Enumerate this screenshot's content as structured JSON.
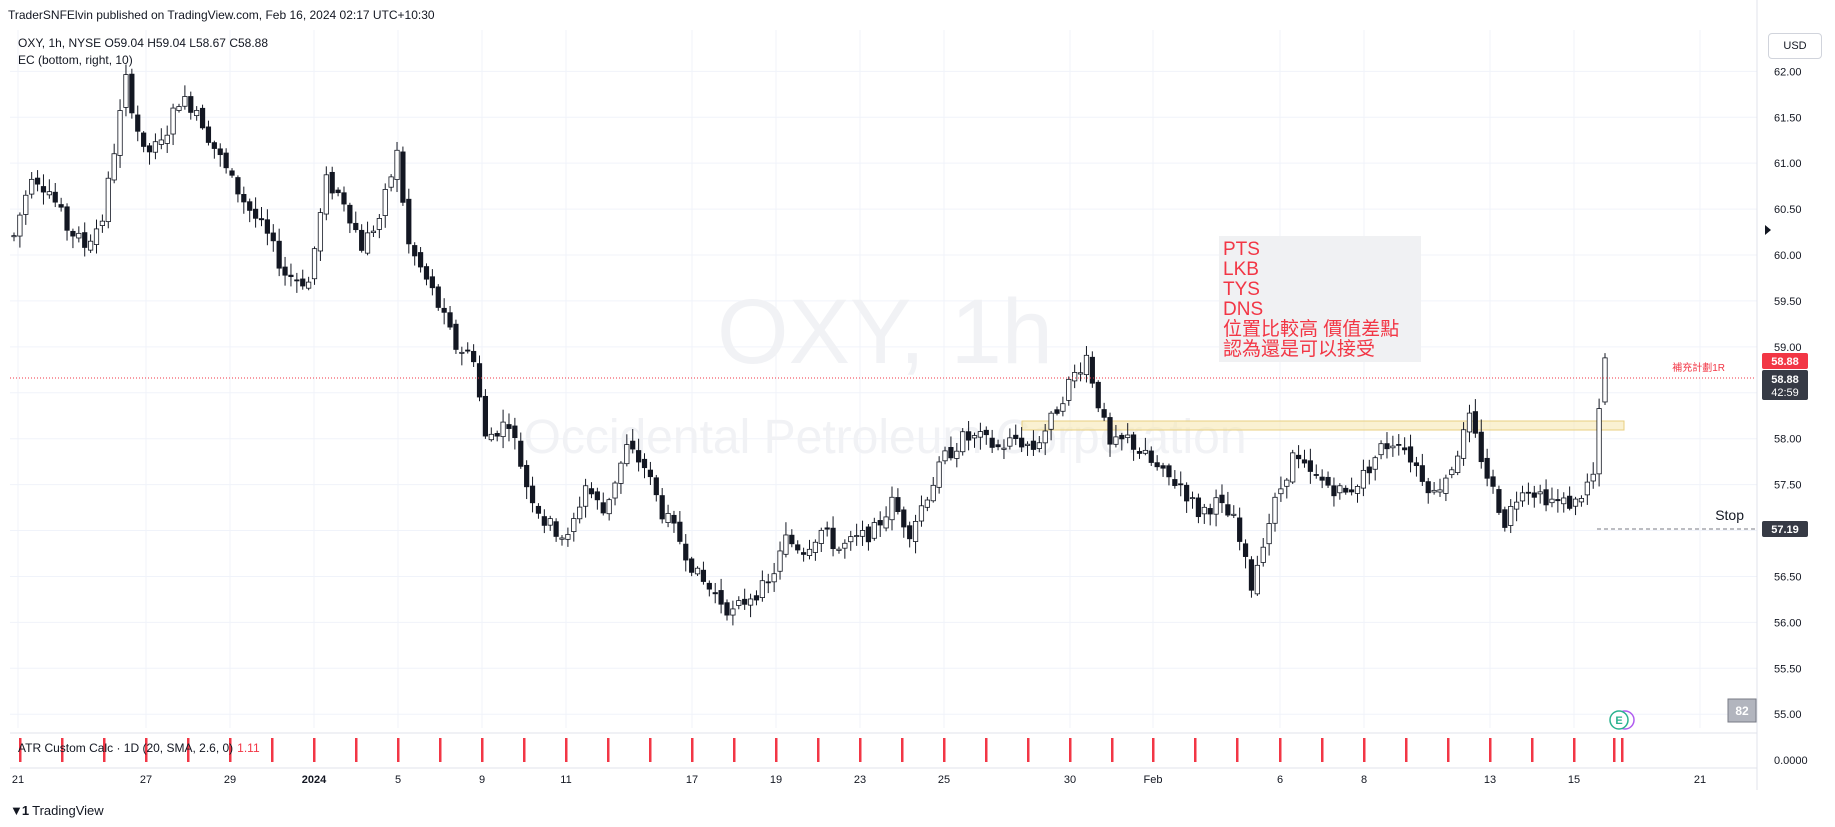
{
  "header": {
    "published_by": "TraderSNFElvin published on TradingView.com, Feb 16, 2024 02:17 UTC+10:30"
  },
  "legend": {
    "symbol_line": "OXY, 1h, NYSE",
    "open": "O59.04",
    "high": "H59.04",
    "low": "L58.67",
    "close": "C58.88",
    "indicator_line": "EC (bottom, right, 10)"
  },
  "currency_button": "USD",
  "watermark": {
    "ticker": "OXY, 1h",
    "company": "Occidental Petroleum Corporation"
  },
  "annotation": {
    "lines": [
      "PTS",
      "LKB",
      "TYS",
      "DNS",
      "位置比較高 價值差點",
      "認為還是可以接受"
    ]
  },
  "price_labels": {
    "plan_label": "補充計劃1R",
    "plan_price": "58.88",
    "last_price": "58.88",
    "countdown": "42:59",
    "stop_label": "Stop",
    "stop_price": "57.19"
  },
  "indicator": {
    "name": "ATR Custom Calc · 1D (20, SMA, 2.6, 0)",
    "value": "1.11"
  },
  "badges": {
    "earnings": "E",
    "score": "82"
  },
  "footer": {
    "logo_text": "TradingView"
  },
  "colors": {
    "red": "#f23645",
    "ink": "#131722",
    "zone": "#f6e7b4",
    "grid": "#f0f3fa"
  },
  "chart_data": {
    "type": "candlestick",
    "symbol": "OXY",
    "interval": "1h",
    "exchange": "NYSE",
    "y_axis_ticks": [
      "62.00",
      "61.50",
      "61.00",
      "60.50",
      "60.00",
      "59.50",
      "59.00",
      "58.50",
      "58.00",
      "57.50",
      "57.00",
      "56.50",
      "56.00",
      "55.50",
      "55.00"
    ],
    "ylim": [
      54.85,
      62.45
    ],
    "indicator_axis_tick": "0.0000",
    "x_axis_ticks": [
      "21",
      "27",
      "29",
      "2024",
      "5",
      "9",
      "11",
      "17",
      "19",
      "23",
      "25",
      "30",
      "Feb",
      "6",
      "8",
      "13",
      "15",
      "21"
    ],
    "support_zone": [
      58.3,
      58.4
    ],
    "stop_level": 57.19,
    "current_price": 58.88,
    "last_candle": {
      "open": 59.04,
      "high": 59.04,
      "low": 58.67,
      "close": 58.88
    },
    "price_path": [
      [
        0,
        60.2
      ],
      [
        3,
        60.9
      ],
      [
        6,
        60.7
      ],
      [
        9,
        60.3
      ],
      [
        12,
        60.1
      ],
      [
        15,
        60.4
      ],
      [
        19,
        61.9
      ],
      [
        22,
        61.1
      ],
      [
        25,
        61.2
      ],
      [
        28,
        61.7
      ],
      [
        31,
        61.6
      ],
      [
        33,
        61.3
      ],
      [
        37,
        60.8
      ],
      [
        40,
        60.5
      ],
      [
        43,
        60.2
      ],
      [
        46,
        59.8
      ],
      [
        50,
        59.7
      ],
      [
        53,
        60.8
      ],
      [
        56,
        60.6
      ],
      [
        59,
        60.1
      ],
      [
        62,
        60.4
      ],
      [
        65,
        61.1
      ],
      [
        67,
        60.1
      ],
      [
        71,
        59.6
      ],
      [
        75,
        59.0
      ],
      [
        78,
        58.9
      ],
      [
        80,
        58.0
      ],
      [
        84,
        58.2
      ],
      [
        87,
        57.5
      ],
      [
        90,
        57.1
      ],
      [
        94,
        56.9
      ],
      [
        97,
        57.5
      ],
      [
        100,
        57.2
      ],
      [
        104,
        57.9
      ],
      [
        107,
        57.7
      ],
      [
        110,
        57.2
      ],
      [
        113,
        56.9
      ],
      [
        116,
        56.5
      ],
      [
        119,
        56.3
      ],
      [
        122,
        56.1
      ],
      [
        125,
        56.3
      ],
      [
        128,
        56.4
      ],
      [
        131,
        56.9
      ],
      [
        134,
        56.8
      ],
      [
        137,
        57.0
      ],
      [
        140,
        56.8
      ],
      [
        143,
        56.9
      ],
      [
        146,
        57.0
      ],
      [
        149,
        57.3
      ],
      [
        152,
        57.0
      ],
      [
        155,
        57.4
      ],
      [
        158,
        57.8
      ],
      [
        161,
        58.0
      ],
      [
        164,
        58.0
      ],
      [
        167,
        57.9
      ],
      [
        170,
        58.0
      ],
      [
        173,
        57.9
      ],
      [
        176,
        58.2
      ],
      [
        179,
        58.6
      ],
      [
        182,
        58.9
      ],
      [
        184,
        58.4
      ],
      [
        186,
        57.9
      ],
      [
        189,
        58.0
      ],
      [
        192,
        57.8
      ],
      [
        195,
        57.6
      ],
      [
        198,
        57.5
      ],
      [
        201,
        57.2
      ],
      [
        204,
        57.3
      ],
      [
        207,
        57.1
      ],
      [
        210,
        56.4
      ],
      [
        212,
        56.9
      ],
      [
        214,
        57.3
      ],
      [
        217,
        57.8
      ],
      [
        220,
        57.6
      ],
      [
        223,
        57.5
      ],
      [
        226,
        57.4
      ],
      [
        229,
        57.6
      ],
      [
        232,
        57.9
      ],
      [
        235,
        58.0
      ],
      [
        238,
        57.7
      ],
      [
        241,
        57.4
      ],
      [
        244,
        57.7
      ],
      [
        247,
        58.2
      ],
      [
        250,
        57.6
      ],
      [
        253,
        57.1
      ],
      [
        256,
        57.5
      ],
      [
        259,
        57.4
      ],
      [
        262,
        57.3
      ],
      [
        265,
        57.3
      ],
      [
        268,
        57.6
      ],
      [
        270,
        58.9
      ]
    ]
  }
}
